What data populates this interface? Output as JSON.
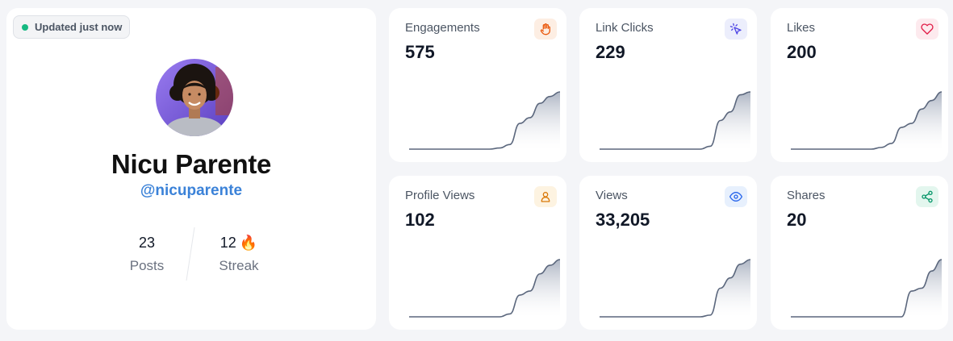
{
  "profile": {
    "status_badge": "Updated just now",
    "name": "Nicu Parente",
    "handle": "@nicuparente",
    "stats": {
      "posts": {
        "value": "23",
        "label": "Posts"
      },
      "streak": {
        "value": "12",
        "label": "Streak",
        "emoji": "🔥"
      }
    }
  },
  "metrics": [
    {
      "title": "Engagements",
      "value": "575",
      "icon": "hand-icon",
      "icon_color": "#ea580c",
      "icon_bg": "#fdeee3",
      "spark": [
        0,
        0,
        0,
        0,
        0,
        0,
        0,
        0,
        0,
        0.02,
        0.08,
        0.45,
        0.55,
        0.8,
        0.92,
        1
      ]
    },
    {
      "title": "Link Clicks",
      "value": "229",
      "icon": "cursor-click-icon",
      "icon_color": "#4f46e5",
      "icon_bg": "#eceefc",
      "spark": [
        0,
        0,
        0,
        0,
        0,
        0,
        0,
        0,
        0,
        0,
        0,
        0.05,
        0.5,
        0.65,
        0.95,
        1
      ]
    },
    {
      "title": "Likes",
      "value": "200",
      "icon": "heart-icon",
      "icon_color": "#e11d48",
      "icon_bg": "#fdeaee",
      "spark": [
        0,
        0,
        0,
        0,
        0,
        0,
        0,
        0,
        0,
        0.03,
        0.1,
        0.38,
        0.45,
        0.7,
        0.85,
        1
      ]
    },
    {
      "title": "Profile Views",
      "value": "102",
      "icon": "user-icon",
      "icon_color": "#d97706",
      "icon_bg": "#fdf3e1",
      "spark": [
        0,
        0,
        0,
        0,
        0,
        0,
        0,
        0,
        0,
        0,
        0.05,
        0.38,
        0.45,
        0.75,
        0.9,
        1
      ]
    },
    {
      "title": "Views",
      "value": "33,205",
      "icon": "eye-icon",
      "icon_color": "#2563eb",
      "icon_bg": "#e7f0fd",
      "spark": [
        0,
        0,
        0,
        0,
        0,
        0,
        0,
        0,
        0,
        0,
        0,
        0.03,
        0.5,
        0.68,
        0.92,
        1
      ]
    },
    {
      "title": "Shares",
      "value": "20",
      "icon": "share-icon",
      "icon_color": "#059669",
      "icon_bg": "#e3f6ee",
      "spark": [
        0,
        0,
        0,
        0,
        0,
        0,
        0,
        0,
        0,
        0,
        0,
        0,
        0.45,
        0.5,
        0.8,
        1
      ]
    }
  ]
}
